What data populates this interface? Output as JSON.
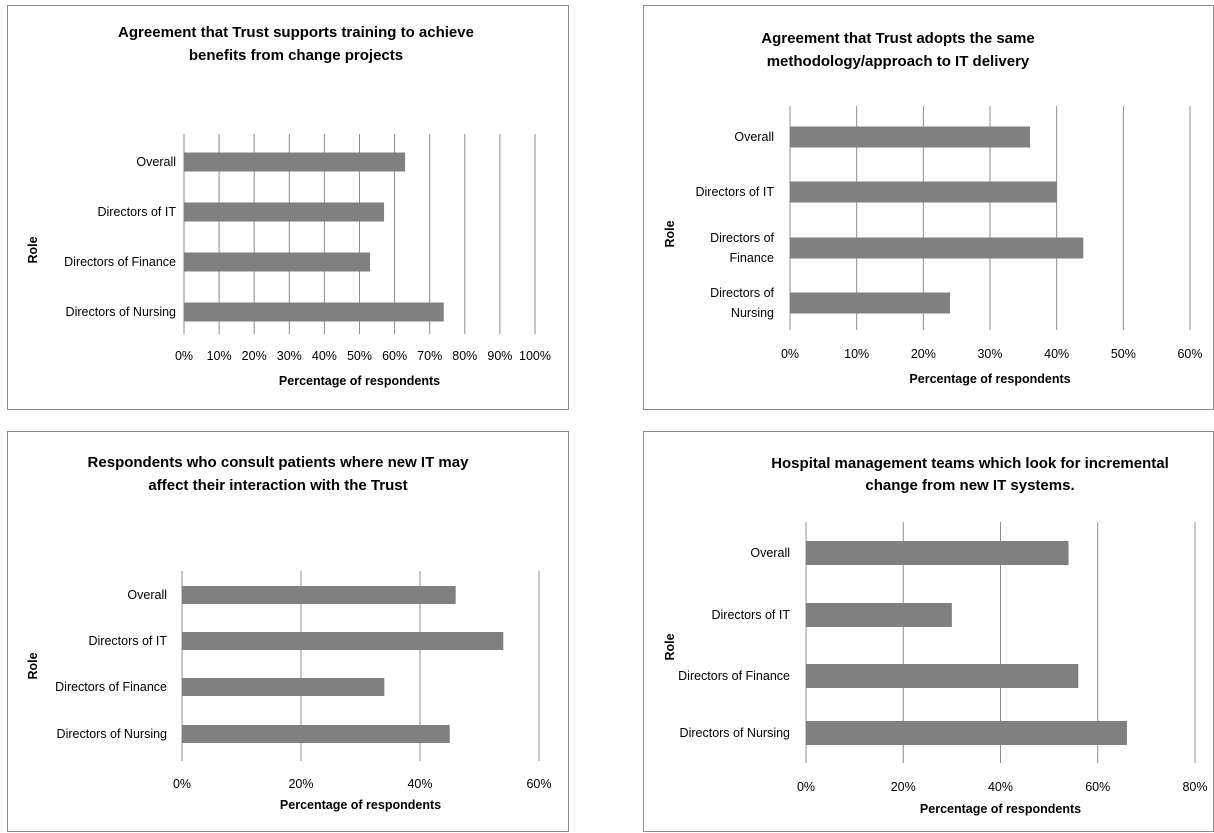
{
  "chart_data": [
    {
      "type": "bar",
      "orientation": "horizontal",
      "title": [
        "Agreement that Trust supports training to achieve",
        "benefits from change projects"
      ],
      "xlabel": "Percentage of respondents",
      "ylabel": "Role",
      "categories": [
        [
          "Overall"
        ],
        [
          "Directors of IT"
        ],
        [
          "Directors of Finance"
        ],
        [
          "Directors of Nursing"
        ]
      ],
      "values": [
        0.63,
        0.57,
        0.53,
        0.74
      ],
      "xlim": [
        0,
        1.0
      ],
      "ticks": [
        "0%",
        "10%",
        "20%",
        "30%",
        "40%",
        "50%",
        "60%",
        "70%",
        "80%",
        "90%",
        "100%"
      ],
      "grid": true,
      "legend": "none"
    },
    {
      "type": "bar",
      "orientation": "horizontal",
      "title": [
        "Agreement that Trust adopts the same",
        "methodology/approach to IT delivery"
      ],
      "xlabel": "Percentage of respondents",
      "ylabel": "Role",
      "categories": [
        [
          "Overall"
        ],
        [
          "Directors of IT"
        ],
        [
          "Directors of",
          "Finance"
        ],
        [
          "Directors of",
          "Nursing"
        ]
      ],
      "values": [
        0.36,
        0.4,
        0.44,
        0.24
      ],
      "xlim": [
        0,
        0.6
      ],
      "ticks": [
        "0%",
        "10%",
        "20%",
        "30%",
        "40%",
        "50%",
        "60%"
      ],
      "grid": true,
      "legend": "none"
    },
    {
      "type": "bar",
      "orientation": "horizontal",
      "title": [
        "Respondents who consult patients where new IT may",
        "affect their interaction with the Trust"
      ],
      "xlabel": "Percentage of respondents",
      "ylabel": "Role",
      "categories": [
        [
          "Overall"
        ],
        [
          "Directors of IT"
        ],
        [
          "Directors of Finance"
        ],
        [
          "Directors of Nursing"
        ]
      ],
      "values": [
        0.46,
        0.54,
        0.34,
        0.45
      ],
      "xlim": [
        0,
        0.6
      ],
      "ticks": [
        "0%",
        "20%",
        "40%",
        "60%"
      ],
      "grid": true,
      "legend": "none"
    },
    {
      "type": "bar",
      "orientation": "horizontal",
      "title": [
        "Hospital management teams which look for incremental",
        "change from new IT systems."
      ],
      "xlabel": "Percentage of respondents",
      "ylabel": "Role",
      "categories": [
        [
          "Overall"
        ],
        [
          "Directors of IT"
        ],
        [
          "Directors of Finance"
        ],
        [
          "Directors of Nursing"
        ]
      ],
      "values": [
        0.54,
        0.3,
        0.56,
        0.66
      ],
      "xlim": [
        0,
        0.8
      ],
      "ticks": [
        "0%",
        "20%",
        "40%",
        "60%",
        "80%"
      ],
      "grid": true,
      "legend": "none"
    }
  ]
}
